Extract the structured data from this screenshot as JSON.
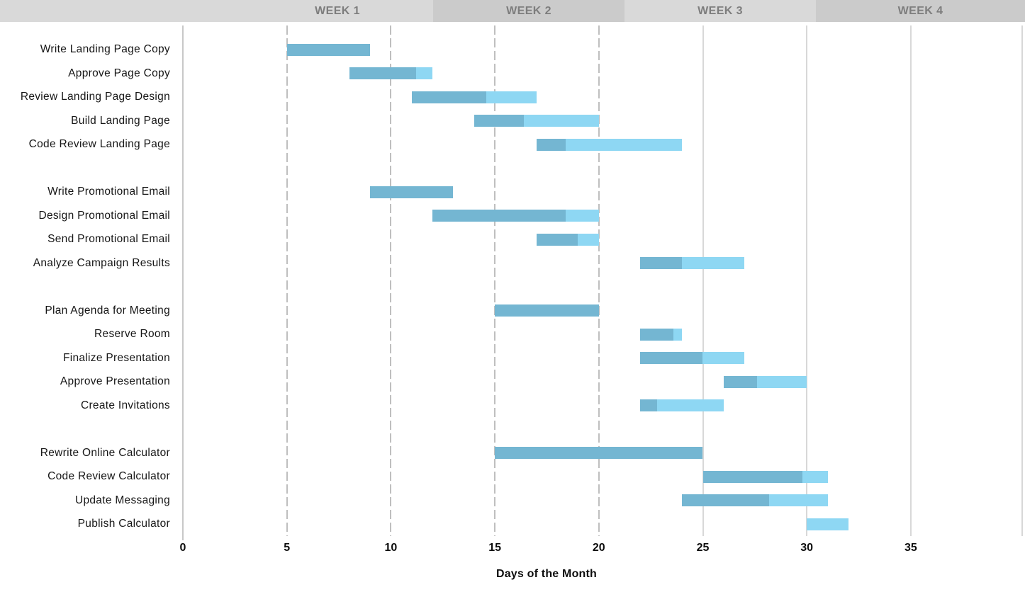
{
  "header": {
    "weeks": [
      "WEEK 1",
      "WEEK 2",
      "WEEK 3",
      "WEEK 4"
    ]
  },
  "chart_data": {
    "type": "gantt",
    "xlabel": "Days of the Month",
    "x_ticks": [
      0,
      5,
      10,
      15,
      20,
      25,
      30,
      35
    ],
    "x_range": [
      0,
      40.5
    ],
    "week_headers": [
      "WEEK 1",
      "WEEK 2",
      "WEEK 3",
      "WEEK 4"
    ],
    "gridlines_dashed": [
      5,
      10,
      15,
      20
    ],
    "gridlines_solid": [
      25,
      30,
      35
    ],
    "legend_position": "none",
    "grid": "vertical-only",
    "task_groups": [
      [
        {
          "label": "Write Landing Page Copy",
          "start": 5,
          "end": 9,
          "completed_until": 9,
          "percent_complete": 100
        },
        {
          "label": "Approve Page Copy",
          "start": 8,
          "end": 12,
          "completed_until": 11.2,
          "percent_complete": 80
        },
        {
          "label": "Review Landing Page Design",
          "start": 11,
          "end": 17,
          "completed_until": 14.6,
          "percent_complete": 60
        },
        {
          "label": "Build Landing Page",
          "start": 14,
          "end": 20,
          "completed_until": 16.4,
          "percent_complete": 40
        },
        {
          "label": "Code Review Landing Page",
          "start": 17,
          "end": 24,
          "completed_until": 18.4,
          "percent_complete": 20
        }
      ],
      [
        {
          "label": "Write Promotional Email",
          "start": 9,
          "end": 13,
          "completed_until": 13,
          "percent_complete": 100
        },
        {
          "label": "Design Promotional Email",
          "start": 12,
          "end": 20,
          "completed_until": 18.4,
          "percent_complete": 80
        },
        {
          "label": "Send Promotional Email",
          "start": 17,
          "end": 20,
          "completed_until": 19,
          "percent_complete": 67
        },
        {
          "label": "Analyze Campaign Results",
          "start": 22,
          "end": 27,
          "completed_until": 24,
          "percent_complete": 40
        }
      ],
      [
        {
          "label": "Plan Agenda for Meeting",
          "start": 15,
          "end": 20,
          "completed_until": 20,
          "percent_complete": 100
        },
        {
          "label": "Reserve Room",
          "start": 22,
          "end": 24,
          "completed_until": 23.6,
          "percent_complete": 80
        },
        {
          "label": "Finalize Presentation",
          "start": 22,
          "end": 27,
          "completed_until": 25,
          "percent_complete": 60
        },
        {
          "label": "Approve Presentation",
          "start": 26,
          "end": 30,
          "completed_until": 27.6,
          "percent_complete": 40
        },
        {
          "label": "Create Invitations",
          "start": 22,
          "end": 26,
          "completed_until": 22.8,
          "percent_complete": 20
        }
      ],
      [
        {
          "label": "Rewrite Online Calculator",
          "start": 15,
          "end": 25,
          "completed_until": 25,
          "percent_complete": 100
        },
        {
          "label": "Code Review Calculator",
          "start": 25,
          "end": 31,
          "completed_until": 29.8,
          "percent_complete": 80
        },
        {
          "label": "Update Messaging",
          "start": 24,
          "end": 31,
          "completed_until": 28.2,
          "percent_complete": 60
        },
        {
          "label": "Publish Calculator",
          "start": 30,
          "end": 32,
          "completed_until": 30,
          "percent_complete": 0
        }
      ]
    ]
  },
  "colors": {
    "bar_completed": "#74b6d2",
    "bar_remaining": "#8ed7f3",
    "header_light": "#d9d9d9",
    "header_dark": "#cbcbcb",
    "header_text": "#7d7d7d",
    "gridline_dashed": "#bfbfbf",
    "gridline_solid": "#d8d8d8",
    "gridline_zero": "#c8c8c8"
  }
}
